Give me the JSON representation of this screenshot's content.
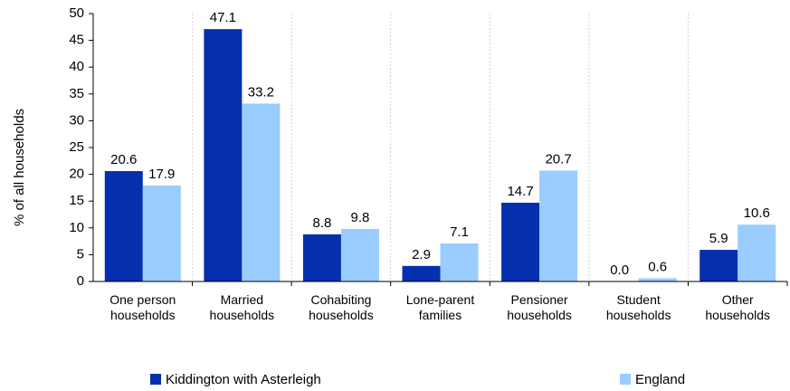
{
  "chart_data": {
    "type": "bar",
    "y_label": "% of all households",
    "categories": [
      "One person\nhouseholds",
      "Married\nhouseholds",
      "Cohabiting\nhouseholds",
      "Lone-parent\nfamilies",
      "Pensioner\nhouseholds",
      "Student\nhouseholds",
      "Other\nhouseholds"
    ],
    "series": [
      {
        "name": "Kiddington with Asterleigh",
        "color": "#0530ad",
        "values": [
          20.6,
          47.1,
          8.8,
          2.9,
          14.7,
          0,
          5.9
        ],
        "value_labels": [
          "20.6",
          "47.1",
          "8.8",
          "2.9",
          "14.7",
          "0.0",
          "5.9"
        ]
      },
      {
        "name": "England",
        "color": "#99ccff",
        "values": [
          17.9,
          33.2,
          9.8,
          7.1,
          20.7,
          0.6,
          10.6
        ],
        "value_labels": [
          "17.9",
          "33.2",
          "9.8",
          "7.1",
          "20.7",
          "0.6",
          "10.6"
        ]
      }
    ],
    "ylim": [
      0,
      50
    ],
    "yticks": [
      0,
      5,
      10,
      15,
      20,
      25,
      30,
      35,
      40,
      45,
      50
    ],
    "legend": "bottom"
  }
}
